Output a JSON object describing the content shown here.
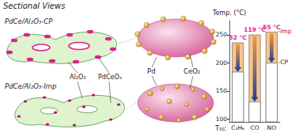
{
  "diagram": {
    "title": "Sectional Views",
    "left": {
      "top_label": "PdCe/Al₂O₃-CP",
      "bottom_label": "PdCe/Al₂O₃-Imp",
      "support_label": "Al₂O₃",
      "oxide_label": "PdCeOₓ"
    },
    "right": {
      "metal_label": "Pd",
      "oxide_label": "CeO₂"
    }
  },
  "chart_data": {
    "type": "bar",
    "y_label": "Temp. (°C)",
    "x_label": "T₅₀:",
    "categories": [
      "C₃H₆",
      "CO",
      "NO"
    ],
    "series": [
      {
        "name": "-CP",
        "color": "#ffffff",
        "values": [
          184,
          131,
          200
        ]
      },
      {
        "name": "-Imp",
        "color": "#f7c48f",
        "values": [
          236,
          250,
          255
        ]
      }
    ],
    "annotations": [
      "52 °C",
      "119 °C",
      "55 °C"
    ],
    "ylim": [
      95,
      275
    ],
    "yticks": [
      100,
      150,
      200,
      250
    ]
  }
}
